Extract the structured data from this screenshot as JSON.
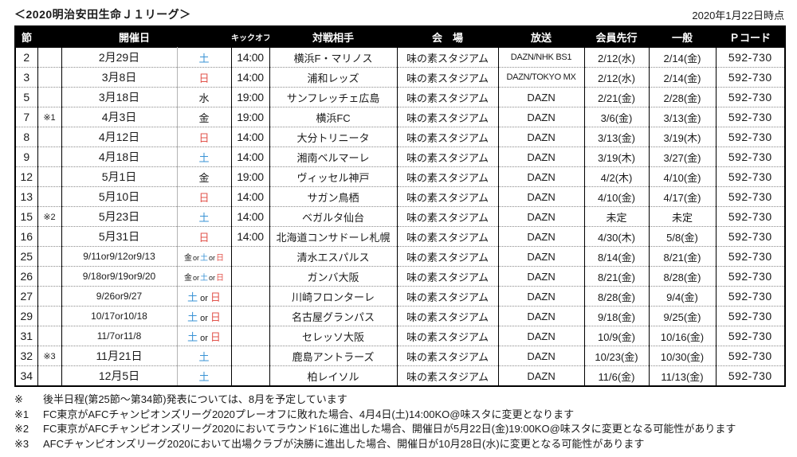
{
  "page": {
    "title": "＜2020明治安田生命Ｊ１リーグ＞",
    "as_of": "2020年1月22日時点"
  },
  "colors": {
    "saturday": "#3a93d5",
    "sunday": "#e2534b",
    "header_bg": "#000000",
    "header_text": "#ffffff"
  },
  "table": {
    "headers": [
      {
        "label": "節"
      },
      {
        "label": "開催日"
      },
      {
        "label": "キックオフ"
      },
      {
        "label": "対戦相手"
      },
      {
        "label": "会　場"
      },
      {
        "label": "放送"
      },
      {
        "label": "会員先行"
      },
      {
        "label": "一般"
      },
      {
        "label": "Ｐコード"
      }
    ],
    "rows": [
      {
        "round": "2",
        "note": "",
        "date": "2月29日",
        "day": [
          {
            "t": "土",
            "c": "sat"
          }
        ],
        "kickoff": "14:00",
        "opponent": "横浜F・マリノス",
        "venue": "味の素スタジアム",
        "broadcast": "DAZN/NHK BS1",
        "member": "2/12(水)",
        "general": "2/14(金)",
        "pcode": "592-730"
      },
      {
        "round": "3",
        "note": "",
        "date": "3月8日",
        "day": [
          {
            "t": "日",
            "c": "sun"
          }
        ],
        "kickoff": "14:00",
        "opponent": "浦和レッズ",
        "venue": "味の素スタジアム",
        "broadcast": "DAZN/TOKYO MX",
        "member": "2/12(水)",
        "general": "2/14(金)",
        "pcode": "592-730"
      },
      {
        "round": "5",
        "note": "",
        "date": "3月18日",
        "day": [
          {
            "t": "水",
            "c": "wd"
          }
        ],
        "kickoff": "19:00",
        "opponent": "サンフレッチェ広島",
        "venue": "味の素スタジアム",
        "broadcast": "DAZN",
        "member": "2/21(金)",
        "general": "2/28(金)",
        "pcode": "592-730"
      },
      {
        "round": "7",
        "note": "※1",
        "date": "4月3日",
        "day": [
          {
            "t": "金",
            "c": "wd"
          }
        ],
        "kickoff": "19:00",
        "opponent": "横浜FC",
        "venue": "味の素スタジアム",
        "broadcast": "DAZN",
        "member": "3/6(金)",
        "general": "3/13(金)",
        "pcode": "592-730"
      },
      {
        "round": "8",
        "note": "",
        "date": "4月12日",
        "day": [
          {
            "t": "日",
            "c": "sun"
          }
        ],
        "kickoff": "14:00",
        "opponent": "大分トリニータ",
        "venue": "味の素スタジアム",
        "broadcast": "DAZN",
        "member": "3/13(金)",
        "general": "3/19(木)",
        "pcode": "592-730"
      },
      {
        "round": "9",
        "note": "",
        "date": "4月18日",
        "day": [
          {
            "t": "土",
            "c": "sat"
          }
        ],
        "kickoff": "14:00",
        "opponent": "湘南ベルマーレ",
        "venue": "味の素スタジアム",
        "broadcast": "DAZN",
        "member": "3/19(木)",
        "general": "3/27(金)",
        "pcode": "592-730"
      },
      {
        "round": "12",
        "note": "",
        "date": "5月1日",
        "day": [
          {
            "t": "金",
            "c": "wd"
          }
        ],
        "kickoff": "19:00",
        "opponent": "ヴィッセル神戸",
        "venue": "味の素スタジアム",
        "broadcast": "DAZN",
        "member": "4/2(木)",
        "general": "4/10(金)",
        "pcode": "592-730"
      },
      {
        "round": "13",
        "note": "",
        "date": "5月10日",
        "day": [
          {
            "t": "日",
            "c": "sun"
          }
        ],
        "kickoff": "14:00",
        "opponent": "サガン鳥栖",
        "venue": "味の素スタジアム",
        "broadcast": "DAZN",
        "member": "4/10(金)",
        "general": "4/17(金)",
        "pcode": "592-730"
      },
      {
        "round": "15",
        "note": "※2",
        "date": "5月23日",
        "day": [
          {
            "t": "土",
            "c": "sat"
          }
        ],
        "kickoff": "14:00",
        "opponent": "ベガルタ仙台",
        "venue": "味の素スタジアム",
        "broadcast": "DAZN",
        "member": "未定",
        "general": "未定",
        "pcode": "592-730"
      },
      {
        "round": "16",
        "note": "",
        "date": "5月31日",
        "day": [
          {
            "t": "日",
            "c": "sun"
          }
        ],
        "kickoff": "14:00",
        "opponent": "北海道コンサドーレ札幌",
        "venue": "味の素スタジアム",
        "broadcast": "DAZN",
        "member": "4/30(木)",
        "general": "5/8(金)",
        "pcode": "592-730"
      },
      {
        "round": "25",
        "note": "",
        "date": "9/11or9/12or9/13",
        "day": [
          {
            "t": "金",
            "c": "wd"
          },
          {
            "t": "or",
            "c": "or"
          },
          {
            "t": "土",
            "c": "sat"
          },
          {
            "t": "or",
            "c": "or"
          },
          {
            "t": "日",
            "c": "sun"
          }
        ],
        "kickoff": "",
        "opponent": "清水エスパルス",
        "venue": "味の素スタジアム",
        "broadcast": "DAZN",
        "member": "8/14(金)",
        "general": "8/21(金)",
        "pcode": "592-730"
      },
      {
        "round": "26",
        "note": "",
        "date": "9/18or9/19or9/20",
        "day": [
          {
            "t": "金",
            "c": "wd"
          },
          {
            "t": "or",
            "c": "or"
          },
          {
            "t": "土",
            "c": "sat"
          },
          {
            "t": "or",
            "c": "or"
          },
          {
            "t": "日",
            "c": "sun"
          }
        ],
        "kickoff": "",
        "opponent": "ガンバ大阪",
        "venue": "味の素スタジアム",
        "broadcast": "DAZN",
        "member": "8/21(金)",
        "general": "8/28(金)",
        "pcode": "592-730"
      },
      {
        "round": "27",
        "note": "",
        "date": "9/26or9/27",
        "day": [
          {
            "t": "土",
            "c": "sat"
          },
          {
            "t": "or",
            "c": "or"
          },
          {
            "t": "日",
            "c": "sun"
          }
        ],
        "kickoff": "",
        "opponent": "川崎フロンターレ",
        "venue": "味の素スタジアム",
        "broadcast": "DAZN",
        "member": "8/28(金)",
        "general": "9/4(金)",
        "pcode": "592-730"
      },
      {
        "round": "29",
        "note": "",
        "date": "10/17or10/18",
        "day": [
          {
            "t": "土",
            "c": "sat"
          },
          {
            "t": "or",
            "c": "or"
          },
          {
            "t": "日",
            "c": "sun"
          }
        ],
        "kickoff": "",
        "opponent": "名古屋グランパス",
        "venue": "味の素スタジアム",
        "broadcast": "DAZN",
        "member": "9/18(金)",
        "general": "9/25(金)",
        "pcode": "592-730"
      },
      {
        "round": "31",
        "note": "",
        "date": "11/7or11/8",
        "day": [
          {
            "t": "土",
            "c": "sat"
          },
          {
            "t": "or",
            "c": "or"
          },
          {
            "t": "日",
            "c": "sun"
          }
        ],
        "kickoff": "",
        "opponent": "セレッソ大阪",
        "venue": "味の素スタジアム",
        "broadcast": "DAZN",
        "member": "10/9(金)",
        "general": "10/16(金)",
        "pcode": "592-730"
      },
      {
        "round": "32",
        "note": "※3",
        "date": "11月21日",
        "day": [
          {
            "t": "土",
            "c": "sat"
          }
        ],
        "kickoff": "",
        "opponent": "鹿島アントラーズ",
        "venue": "味の素スタジアム",
        "broadcast": "DAZN",
        "member": "10/23(金)",
        "general": "10/30(金)",
        "pcode": "592-730"
      },
      {
        "round": "34",
        "note": "",
        "date": "12月5日",
        "day": [
          {
            "t": "土",
            "c": "sat"
          }
        ],
        "kickoff": "",
        "opponent": "柏レイソル",
        "venue": "味の素スタジアム",
        "broadcast": "DAZN",
        "member": "11/6(金)",
        "general": "11/13(金)",
        "pcode": "592-730"
      }
    ]
  },
  "notes": [
    {
      "mark": "※",
      "text": "後半日程(第25節～第34節)発表については、8月を予定しています"
    },
    {
      "mark": "※1",
      "text": "FC東京がAFCチャンピオンズリーグ2020プレーオフに敗れた場合、4月4日(土)14:00KO@味スタに変更となります"
    },
    {
      "mark": "※2",
      "text": "FC東京がAFCチャンピオンズリーグ2020においてラウンド16に進出した場合、開催日が5月22日(金)19:00KO@味スタに変更となる可能性があります"
    },
    {
      "mark": "※3",
      "text": "AFCチャンピオンズリーグ2020において出場クラブが決勝に進出した場合、開催日が10月28日(水)に変更となる可能性があります"
    }
  ]
}
